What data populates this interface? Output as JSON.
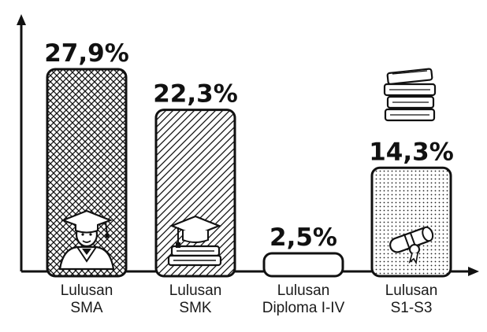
{
  "chart_data": {
    "type": "bar",
    "categories": [
      [
        "Lulusan",
        "SMA"
      ],
      [
        "Lulusan",
        "SMK"
      ],
      [
        "Lulusan",
        "Diploma I-IV"
      ],
      [
        "Lulusan",
        "S1-S3"
      ]
    ],
    "values": [
      27.9,
      22.3,
      2.5,
      14.3
    ],
    "value_labels": [
      "27,9%",
      "22,3%",
      "2,5%",
      "14,3%"
    ],
    "unit": "%",
    "ylim": [
      0,
      30
    ],
    "grid": false,
    "icons": [
      "graduate-icon",
      "mortarboard-books-icon",
      null,
      "diploma-scroll-icon"
    ],
    "extra_icon": "book-stack-icon",
    "colors": {
      "ink": "#111111",
      "background": "#ffffff"
    }
  }
}
